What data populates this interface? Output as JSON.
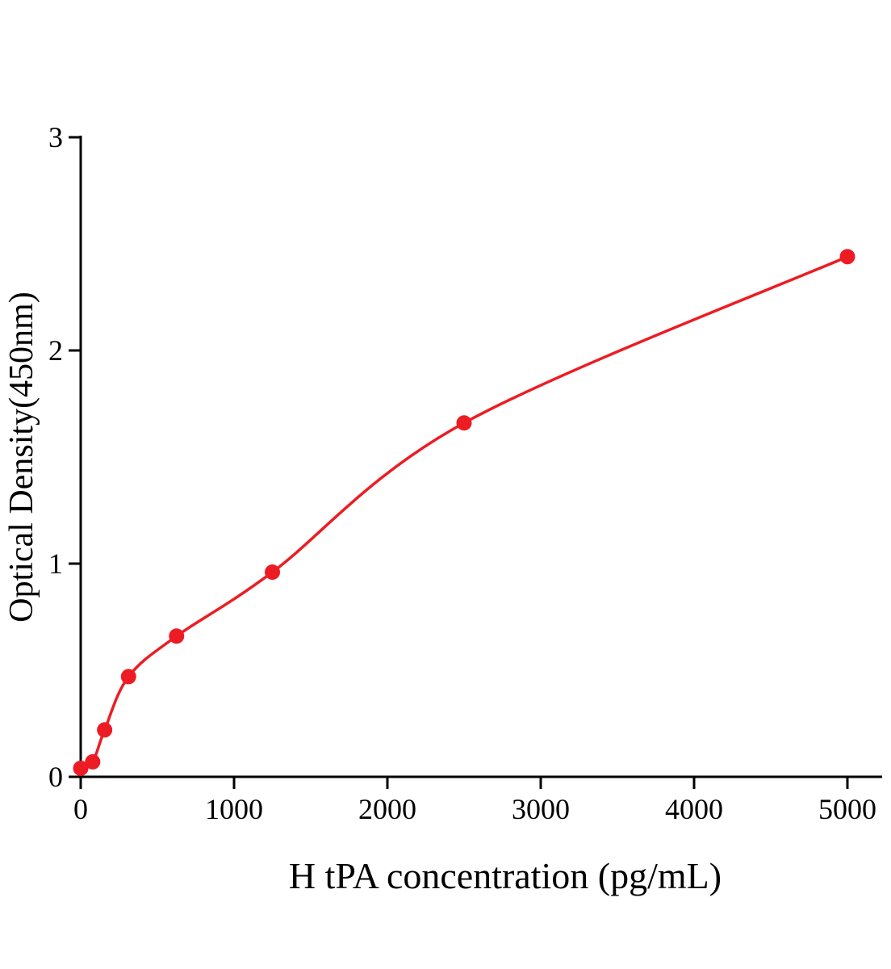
{
  "chart_data": {
    "type": "scatter",
    "title": "",
    "xlabel": "H tPA concentration (pg/mL)",
    "ylabel": "Optical Density(450nm)",
    "x": [
      0,
      78,
      156,
      312,
      625,
      1250,
      2500,
      5000
    ],
    "y": [
      0.04,
      0.07,
      0.22,
      0.47,
      0.66,
      0.96,
      1.66,
      2.44
    ],
    "fit_curve": "smooth saturating curve through data points",
    "x_ticks": [
      0,
      1000,
      2000,
      3000,
      4000,
      5000
    ],
    "y_ticks": [
      0,
      1,
      2,
      3
    ],
    "xlim": [
      0,
      5200
    ],
    "ylim": [
      0,
      3
    ],
    "grid": false,
    "legend": false,
    "point_color": "#ed1c24",
    "line_color": "#ed1c24",
    "axis_color": "#000000"
  }
}
